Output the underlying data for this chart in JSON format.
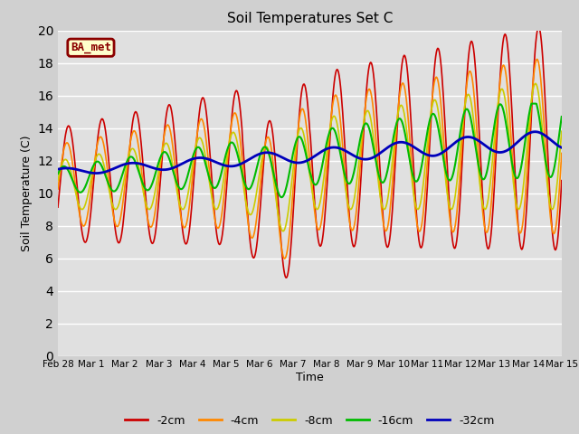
{
  "title": "Soil Temperatures Set C",
  "xlabel": "Time",
  "ylabel": "Soil Temperature (C)",
  "ylim": [
    0,
    20
  ],
  "yticks": [
    0,
    2,
    4,
    6,
    8,
    10,
    12,
    14,
    16,
    18,
    20
  ],
  "fig_facecolor": "#d0d0d0",
  "plot_bg_color": "#e0e0e0",
  "legend_label": "BA_met",
  "legend_box_color": "#ffffcc",
  "legend_box_edge": "#8b0000",
  "series_colors": {
    "-2cm": "#cc0000",
    "-4cm": "#ff8800",
    "-8cm": "#cccc00",
    "-16cm": "#00bb00",
    "-32cm": "#0000bb"
  },
  "series_linewidths": {
    "-2cm": 1.2,
    "-4cm": 1.2,
    "-8cm": 1.2,
    "-16cm": 1.5,
    "-32cm": 2.0
  },
  "xtick_labels": [
    "Feb 28",
    "Mar 1",
    "Mar 2",
    "Mar 3",
    "Mar 4",
    "Mar 5",
    "Mar 6",
    "Mar 7",
    "Mar 8",
    "Mar 9",
    "Mar 10",
    "Mar 11",
    "Mar 12",
    "Mar 13",
    "Mar 14",
    "Mar 15"
  ],
  "xtick_positions": [
    0,
    1,
    2,
    3,
    4,
    5,
    6,
    7,
    8,
    9,
    10,
    11,
    12,
    13,
    14,
    15
  ]
}
